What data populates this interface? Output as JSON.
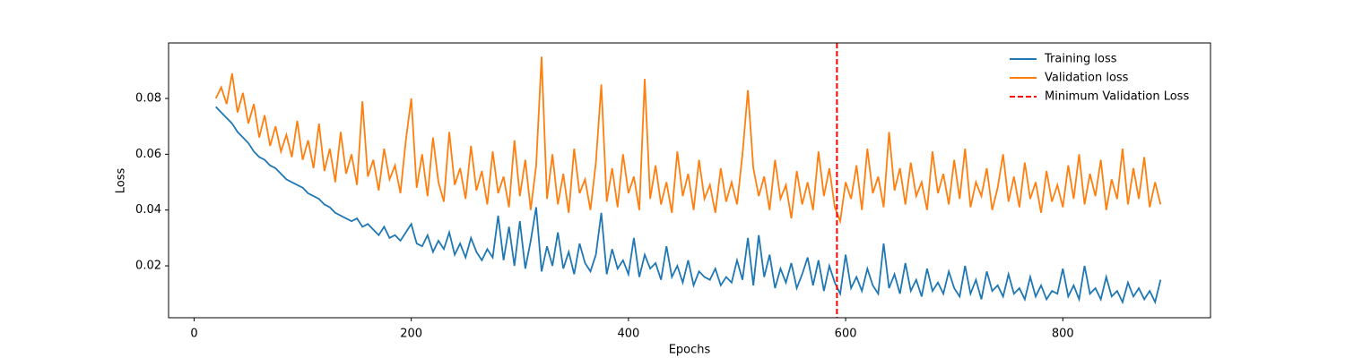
{
  "chart_data": {
    "type": "line",
    "x_label": "Epochs",
    "y_label": "Loss",
    "x": [
      20,
      25,
      30,
      35,
      40,
      45,
      50,
      55,
      60,
      65,
      70,
      75,
      80,
      85,
      90,
      95,
      100,
      105,
      110,
      115,
      120,
      125,
      130,
      135,
      140,
      145,
      150,
      155,
      160,
      165,
      170,
      175,
      180,
      185,
      190,
      195,
      200,
      205,
      210,
      215,
      220,
      225,
      230,
      235,
      240,
      245,
      250,
      255,
      260,
      265,
      270,
      275,
      280,
      285,
      290,
      295,
      300,
      305,
      310,
      315,
      320,
      325,
      330,
      335,
      340,
      345,
      350,
      355,
      360,
      365,
      370,
      375,
      380,
      385,
      390,
      395,
      400,
      405,
      410,
      415,
      420,
      425,
      430,
      435,
      440,
      445,
      450,
      455,
      460,
      465,
      470,
      475,
      480,
      485,
      490,
      495,
      500,
      505,
      510,
      515,
      520,
      525,
      530,
      535,
      540,
      545,
      550,
      555,
      560,
      565,
      570,
      575,
      580,
      585,
      590,
      595,
      600,
      605,
      610,
      615,
      620,
      625,
      630,
      635,
      640,
      645,
      650,
      655,
      660,
      665,
      670,
      675,
      680,
      685,
      690,
      695,
      700,
      705,
      710,
      715,
      720,
      725,
      730,
      735,
      740,
      745,
      750,
      755,
      760,
      765,
      770,
      775,
      780,
      785,
      790,
      795,
      800,
      805,
      810,
      815,
      820,
      825,
      830,
      835,
      840,
      845,
      850,
      855,
      860,
      865,
      870,
      875,
      880,
      885,
      890
    ],
    "series": [
      {
        "name": "Training loss",
        "color": "#1f77b4",
        "values": [
          0.077,
          0.075,
          0.073,
          0.071,
          0.068,
          0.066,
          0.064,
          0.061,
          0.059,
          0.058,
          0.056,
          0.055,
          0.053,
          0.051,
          0.05,
          0.049,
          0.048,
          0.046,
          0.045,
          0.044,
          0.042,
          0.041,
          0.039,
          0.038,
          0.037,
          0.036,
          0.037,
          0.034,
          0.035,
          0.033,
          0.031,
          0.034,
          0.03,
          0.031,
          0.029,
          0.032,
          0.035,
          0.028,
          0.027,
          0.031,
          0.025,
          0.029,
          0.026,
          0.032,
          0.024,
          0.028,
          0.023,
          0.03,
          0.025,
          0.022,
          0.026,
          0.023,
          0.038,
          0.022,
          0.034,
          0.02,
          0.036,
          0.019,
          0.029,
          0.041,
          0.018,
          0.027,
          0.02,
          0.032,
          0.019,
          0.025,
          0.017,
          0.028,
          0.021,
          0.018,
          0.024,
          0.039,
          0.017,
          0.026,
          0.019,
          0.022,
          0.017,
          0.03,
          0.016,
          0.024,
          0.019,
          0.021,
          0.015,
          0.027,
          0.016,
          0.02,
          0.014,
          0.022,
          0.013,
          0.018,
          0.016,
          0.015,
          0.019,
          0.013,
          0.016,
          0.014,
          0.022,
          0.015,
          0.03,
          0.013,
          0.031,
          0.016,
          0.024,
          0.012,
          0.019,
          0.014,
          0.021,
          0.012,
          0.017,
          0.023,
          0.013,
          0.022,
          0.011,
          0.02,
          0.014,
          0.01,
          0.024,
          0.012,
          0.016,
          0.011,
          0.019,
          0.013,
          0.01,
          0.028,
          0.012,
          0.017,
          0.01,
          0.021,
          0.011,
          0.015,
          0.009,
          0.019,
          0.011,
          0.014,
          0.01,
          0.018,
          0.012,
          0.009,
          0.02,
          0.01,
          0.015,
          0.008,
          0.018,
          0.011,
          0.013,
          0.009,
          0.017,
          0.01,
          0.012,
          0.008,
          0.016,
          0.009,
          0.013,
          0.008,
          0.011,
          0.01,
          0.019,
          0.009,
          0.013,
          0.008,
          0.02,
          0.01,
          0.012,
          0.008,
          0.016,
          0.009,
          0.011,
          0.007,
          0.014,
          0.009,
          0.012,
          0.008,
          0.011,
          0.007,
          0.015
        ]
      },
      {
        "name": "Validation loss",
        "color": "#ff7f0e",
        "values": [
          0.08,
          0.084,
          0.078,
          0.089,
          0.075,
          0.082,
          0.071,
          0.078,
          0.066,
          0.074,
          0.063,
          0.07,
          0.061,
          0.067,
          0.059,
          0.072,
          0.058,
          0.065,
          0.055,
          0.071,
          0.054,
          0.062,
          0.05,
          0.068,
          0.053,
          0.06,
          0.049,
          0.079,
          0.052,
          0.058,
          0.047,
          0.062,
          0.051,
          0.056,
          0.046,
          0.065,
          0.08,
          0.048,
          0.06,
          0.045,
          0.066,
          0.05,
          0.043,
          0.068,
          0.049,
          0.055,
          0.044,
          0.063,
          0.047,
          0.054,
          0.042,
          0.061,
          0.046,
          0.052,
          0.041,
          0.065,
          0.045,
          0.058,
          0.04,
          0.056,
          0.095,
          0.044,
          0.06,
          0.042,
          0.053,
          0.039,
          0.062,
          0.046,
          0.051,
          0.04,
          0.057,
          0.085,
          0.043,
          0.055,
          0.041,
          0.06,
          0.046,
          0.052,
          0.04,
          0.087,
          0.044,
          0.056,
          0.042,
          0.05,
          0.039,
          0.061,
          0.045,
          0.053,
          0.04,
          0.058,
          0.044,
          0.049,
          0.039,
          0.055,
          0.043,
          0.05,
          0.042,
          0.06,
          0.083,
          0.055,
          0.045,
          0.052,
          0.04,
          0.058,
          0.044,
          0.049,
          0.037,
          0.054,
          0.042,
          0.05,
          0.04,
          0.061,
          0.045,
          0.055,
          0.041,
          0.036,
          0.05,
          0.044,
          0.056,
          0.04,
          0.062,
          0.046,
          0.052,
          0.041,
          0.068,
          0.047,
          0.055,
          0.042,
          0.057,
          0.045,
          0.05,
          0.04,
          0.061,
          0.046,
          0.053,
          0.042,
          0.058,
          0.044,
          0.062,
          0.041,
          0.05,
          0.045,
          0.055,
          0.04,
          0.048,
          0.06,
          0.043,
          0.052,
          0.041,
          0.057,
          0.044,
          0.05,
          0.039,
          0.054,
          0.043,
          0.049,
          0.041,
          0.056,
          0.044,
          0.06,
          0.042,
          0.053,
          0.045,
          0.058,
          0.04,
          0.051,
          0.044,
          0.062,
          0.042,
          0.055,
          0.044,
          0.059,
          0.041,
          0.05,
          0.042
        ]
      }
    ],
    "vlines": [
      {
        "name": "Minimum Validation Loss",
        "x": 592,
        "color": "red",
        "style": "dashed"
      }
    ],
    "xlim": [
      -23.5,
      936
    ],
    "xticks": [
      0,
      200,
      400,
      600,
      800
    ],
    "ylim": [
      0.0014,
      0.0999
    ],
    "yticks": [
      0.02,
      0.04,
      0.06,
      0.08
    ],
    "grid": false,
    "legend": "upper right"
  }
}
